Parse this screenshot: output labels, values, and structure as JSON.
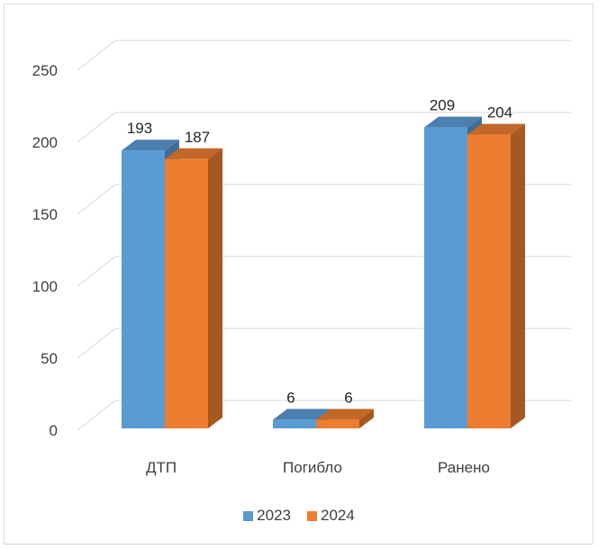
{
  "chart_data": {
    "type": "bar",
    "style": "3d-clustered-column",
    "categories": [
      "ДТП",
      "Погибло",
      "Ранено"
    ],
    "series": [
      {
        "name": "2023",
        "values": [
          193,
          6,
          209
        ],
        "color": "#5b9bd5"
      },
      {
        "name": "2024",
        "values": [
          187,
          6,
          204
        ],
        "color": "#ed7d31"
      }
    ],
    "title": "",
    "xlabel": "",
    "ylabel": "",
    "ylim": [
      0,
      250
    ],
    "yticks": [
      "0",
      "50",
      "100",
      "150",
      "200",
      "250"
    ],
    "grid": true,
    "legend_position": "bottom"
  }
}
